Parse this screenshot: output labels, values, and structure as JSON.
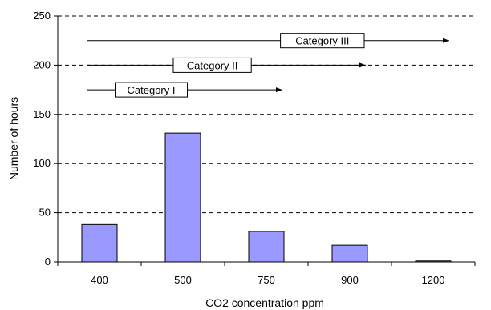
{
  "chart_data": {
    "type": "bar",
    "categories": [
      "400",
      "500",
      "750",
      "900",
      "1200"
    ],
    "values": [
      38,
      131,
      31,
      17,
      1
    ],
    "xlabel": "CO2 concentration ppm",
    "ylabel": "Number of hours",
    "ylim": [
      0,
      250
    ],
    "yticks": [
      0,
      50,
      100,
      150,
      200,
      250
    ],
    "grid": "dashed horizontal",
    "bar_color": "#9999ff",
    "annotations": [
      {
        "label": "Category I",
        "y": 175,
        "start_category": "400",
        "end_category": "750"
      },
      {
        "label": "Category II",
        "y": 200,
        "start_category": "400",
        "end_category": "900"
      },
      {
        "label": "Category III",
        "y": 225,
        "start_category": "400",
        "end_category": "1200"
      }
    ]
  }
}
